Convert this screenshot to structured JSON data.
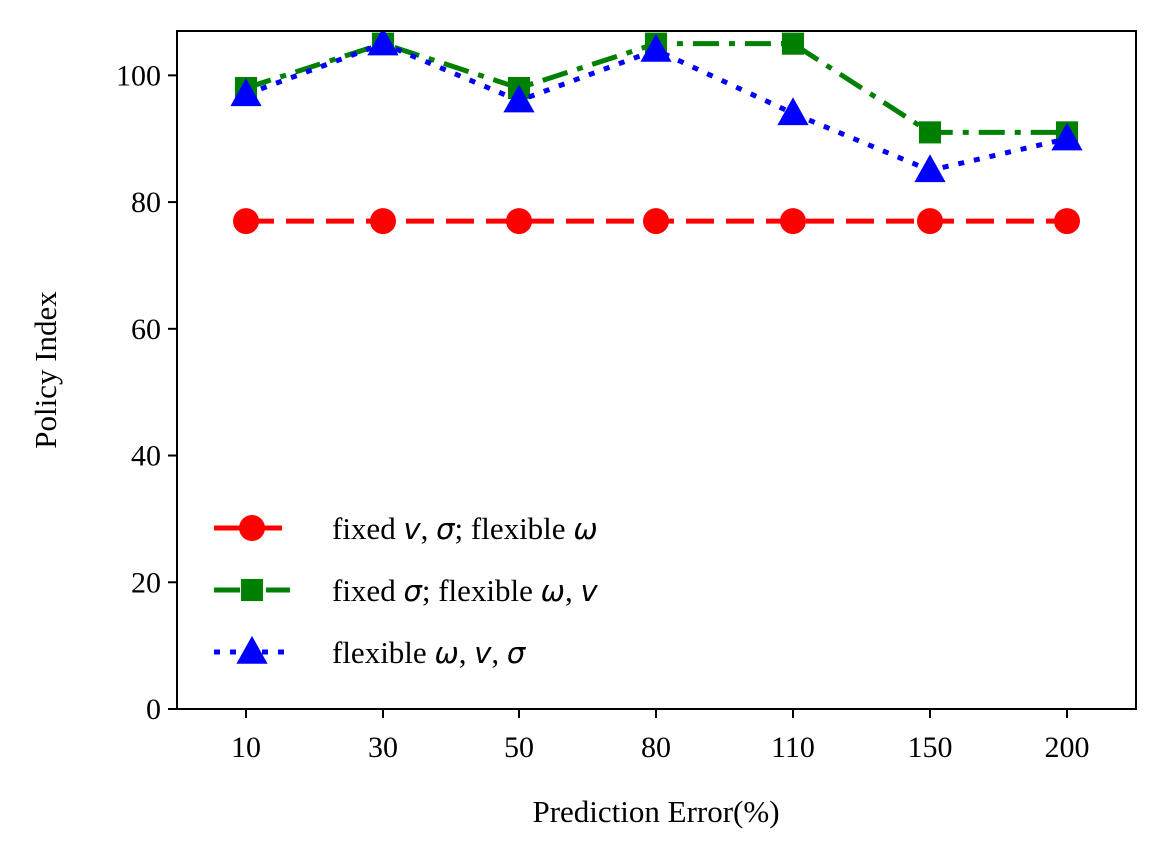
{
  "chart_data": {
    "type": "line",
    "title": "",
    "xlabel": "Prediction Error(%)",
    "ylabel": "Policy Index",
    "categories": [
      "10",
      "30",
      "50",
      "80",
      "110",
      "150",
      "200"
    ],
    "ylim": [
      0,
      107
    ],
    "yticks": [
      0,
      20,
      40,
      60,
      80,
      100
    ],
    "grid": false,
    "legend_position": "lower-left",
    "series": [
      {
        "name": "fixed v, σ; flexible ω",
        "legend_text": [
          {
            "t": "fixed ",
            "math": false
          },
          {
            "t": "v",
            "math": true
          },
          {
            "t": ", ",
            "math": false
          },
          {
            "t": "σ",
            "math": true
          },
          {
            "t": "; flexible ",
            "math": false
          },
          {
            "t": "ω",
            "math": true
          }
        ],
        "values": [
          77,
          77,
          77,
          77,
          77,
          77,
          77
        ],
        "color": "#ff0000",
        "linestyle": "dashed",
        "marker": "circle"
      },
      {
        "name": "fixed σ; flexible ω, v",
        "legend_text": [
          {
            "t": "fixed ",
            "math": false
          },
          {
            "t": "σ",
            "math": true
          },
          {
            "t": "; flexible ",
            "math": false
          },
          {
            "t": "ω",
            "math": true
          },
          {
            "t": ", ",
            "math": false
          },
          {
            "t": "v",
            "math": true
          }
        ],
        "values": [
          98,
          105,
          98,
          105,
          105,
          91,
          91
        ],
        "color": "#008000",
        "linestyle": "dashdot",
        "marker": "square"
      },
      {
        "name": "flexible ω, v, σ",
        "legend_text": [
          {
            "t": "flexible ",
            "math": false
          },
          {
            "t": "ω",
            "math": true
          },
          {
            "t": ", ",
            "math": false
          },
          {
            "t": "v",
            "math": true
          },
          {
            "t": ", ",
            "math": false
          },
          {
            "t": "σ",
            "math": true
          }
        ],
        "values": [
          97,
          105,
          96,
          104,
          94,
          85,
          90
        ],
        "color": "#0000ff",
        "linestyle": "dotted",
        "marker": "triangle"
      }
    ]
  }
}
